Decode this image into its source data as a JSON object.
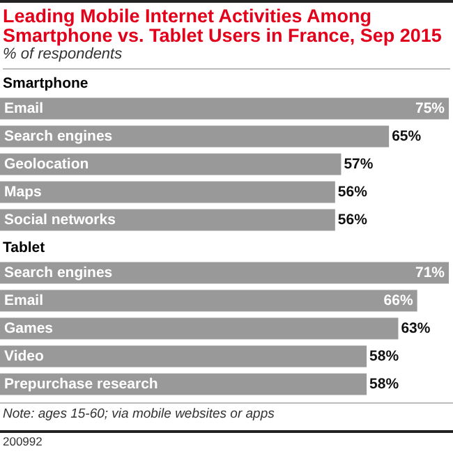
{
  "chart_data": [
    {
      "type": "other",
      "title": "Leading Mobile Internet Activities Among Smartphone vs. Tablet Users in France, Sep 2015",
      "subtitle": "% of respondents"
    },
    {
      "type": "bar",
      "orientation": "horizontal",
      "title": "Smartphone",
      "categories": [
        "Email",
        "Search engines",
        "Geolocation",
        "Maps",
        "Social networks"
      ],
      "values": [
        75,
        65,
        57,
        56,
        56
      ],
      "value_labels": [
        "75%",
        "65%",
        "57%",
        "56%",
        "56%"
      ],
      "color": "#999999"
    },
    {
      "type": "bar",
      "orientation": "horizontal",
      "title": "Tablet",
      "categories": [
        "Search engines",
        "Email",
        "Games",
        "Video",
        "Prepurchase research"
      ],
      "values": [
        71,
        66,
        63,
        58,
        58
      ],
      "value_labels": [
        "71%",
        "66%",
        "63%",
        "58%",
        "58%"
      ],
      "color": "#999999",
      "annotations": [
        "Note: ages 15-60; via mobile websites or apps",
        "200992"
      ]
    }
  ]
}
